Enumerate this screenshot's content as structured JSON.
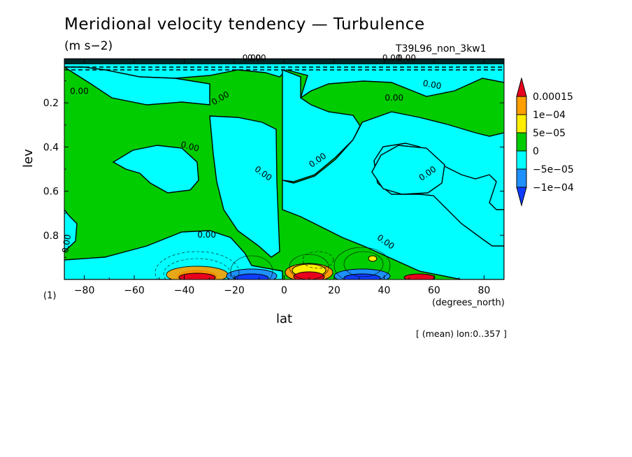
{
  "chart_data": {
    "type": "heatmap",
    "title": "Meridional velocity tendency — Turbulence",
    "units": "(m s−2)",
    "run_label": "T39L96_non_3kw1",
    "xlabel": "lat",
    "ylabel": "lev",
    "x_units_label": "(degrees_north)",
    "y_units_label": "(1)",
    "footnote": "[ (mean) lon:0..357 ]",
    "xlim": [
      -88,
      88
    ],
    "ylim": [
      1.0,
      0.0
    ],
    "x_ticks": [
      -80,
      -60,
      -40,
      -20,
      0,
      20,
      40,
      60,
      80
    ],
    "x_tick_labels": [
      "−80",
      "−60",
      "−40",
      "−20",
      "0",
      "20",
      "40",
      "60",
      "80"
    ],
    "y_ticks": [
      0.2,
      0.4,
      0.6,
      0.8
    ],
    "y_tick_labels": [
      "0.2",
      "0.4",
      "0.6",
      "0.8"
    ],
    "contour_label": "0.00",
    "colorbar": {
      "labels": [
        "0.00015",
        "1e−04",
        "5e−05",
        "0",
        "−5e−05",
        "−1e−04"
      ],
      "levels": [
        0.00015,
        0.0001,
        5e-05,
        0,
        -5e-05,
        -0.0001
      ],
      "colors": [
        "#e8001c",
        "#ff9f00",
        "#ffee00",
        "#00cc00",
        "#00ffff",
        "#1e90ff",
        "#0f3cff"
      ]
    },
    "grid": false
  }
}
